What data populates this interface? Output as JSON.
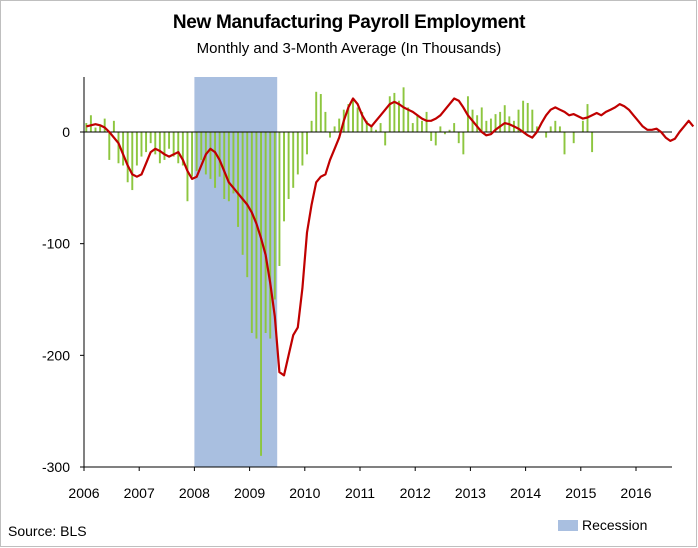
{
  "chart_data": {
    "type": "bar",
    "title": "New Manufacturing Payroll Employment",
    "subtitle": "Monthly and 3-Month Average (In Thousands)",
    "source": "Source: BLS",
    "legend": [
      {
        "label": "Recession",
        "color": "#a9bfe0"
      }
    ],
    "xlabel": "",
    "ylabel": "",
    "x_ticks": [
      "2006",
      "2007",
      "2008",
      "2009",
      "2010",
      "2011",
      "2012",
      "2013",
      "2014",
      "2015",
      "2016"
    ],
    "y_ticks": [
      0,
      -100,
      -200,
      -300
    ],
    "ylim": [
      -300,
      50
    ],
    "xlim": [
      2006.0,
      2016.75
    ],
    "recession": {
      "start": 2008.0,
      "end": 2009.5
    },
    "series": [
      {
        "kind": "bar",
        "color": "#8dc63f",
        "start": 2006.0,
        "step": 0.0833,
        "values": [
          8,
          15,
          4,
          5,
          12,
          -25,
          10,
          -28,
          -30,
          -45,
          -52,
          -30,
          -22,
          -18,
          -10,
          -20,
          -28,
          -25,
          -15,
          -22,
          -28,
          -30,
          -62,
          -40,
          -35,
          -25,
          -38,
          -42,
          -50,
          -40,
          -60,
          -62,
          -55,
          -85,
          -110,
          -130,
          -180,
          -185,
          -290,
          -180,
          -185,
          -150,
          -120,
          -80,
          -60,
          -50,
          -38,
          -30,
          -20,
          10,
          36,
          34,
          18,
          -5,
          5,
          12,
          20,
          25,
          30,
          22,
          18,
          10,
          5,
          2,
          8,
          -12,
          32,
          35,
          28,
          40,
          22,
          8,
          15,
          10,
          18,
          -8,
          -12,
          5,
          -2,
          2,
          8,
          -10,
          -20,
          32,
          20,
          15,
          22,
          10,
          12,
          16,
          18,
          24,
          14,
          10,
          20,
          28,
          26,
          20,
          5,
          0,
          -5,
          5,
          10,
          5,
          -20,
          0,
          -10,
          0,
          10,
          25,
          -18
        ]
      },
      {
        "kind": "line",
        "color": "#c00000",
        "start": 2006.0,
        "step": 0.0833,
        "values": [
          5,
          6,
          7,
          6,
          4,
          0,
          -5,
          -10,
          -20,
          -30,
          -38,
          -40,
          -38,
          -28,
          -18,
          -15,
          -17,
          -20,
          -22,
          -20,
          -18,
          -25,
          -35,
          -42,
          -40,
          -30,
          -20,
          -15,
          -18,
          -25,
          -35,
          -45,
          -50,
          -55,
          -60,
          -65,
          -72,
          -82,
          -95,
          -110,
          -135,
          -165,
          -215,
          -218,
          -200,
          -182,
          -175,
          -140,
          -90,
          -65,
          -45,
          -40,
          -38,
          -25,
          -15,
          -5,
          10,
          22,
          30,
          25,
          15,
          8,
          5,
          10,
          15,
          20,
          25,
          27,
          25,
          22,
          20,
          18,
          15,
          12,
          10,
          10,
          12,
          15,
          20,
          25,
          30,
          28,
          22,
          15,
          10,
          5,
          0,
          -3,
          -2,
          2,
          5,
          8,
          7,
          5,
          3,
          0,
          -3,
          -5,
          0,
          8,
          15,
          20,
          22,
          20,
          18,
          15,
          16,
          14,
          12,
          13,
          15,
          17,
          15,
          18,
          20,
          22,
          25,
          23,
          20,
          15,
          10,
          5,
          2,
          2,
          3,
          0,
          -5,
          -8,
          -6,
          0,
          5,
          10,
          5
        ]
      }
    ]
  }
}
